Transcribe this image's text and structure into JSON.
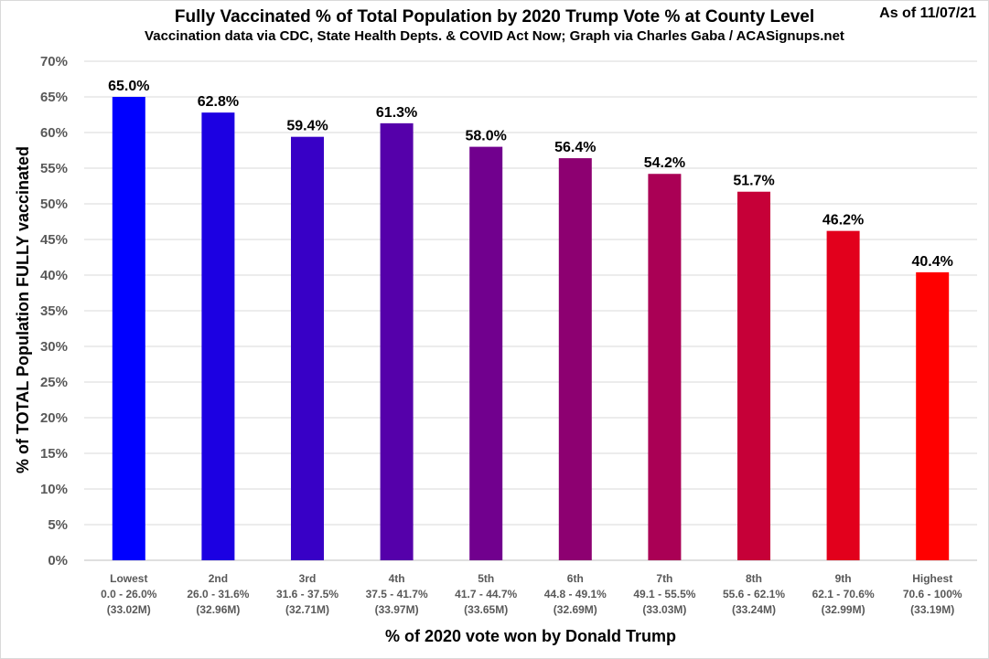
{
  "header": {
    "title": "Fully Vaccinated % of Total Population by 2020 Trump Vote % at County Level",
    "subtitle": "Vaccination data via CDC, State Health Depts. & COVID Act Now; Graph via Charles Gaba / ACASignups.net",
    "as_of": "As of 11/07/21"
  },
  "chart_data": {
    "type": "bar",
    "title": "Fully Vaccinated % of Total Population by 2020 Trump Vote % at County Level",
    "subtitle": "Vaccination data via CDC, State Health Depts. & COVID Act Now; Graph via Charles Gaba / ACASignups.net",
    "xlabel": "% of 2020 vote won by Donald Trump",
    "ylabel": "% of TOTAL Population FULLY vaccinated",
    "ylim": [
      0,
      70
    ],
    "ytick_step": 5,
    "ytick_suffix": "%",
    "grid": true,
    "legend": "none",
    "categories": [
      {
        "rank": "Lowest",
        "range": "0.0 - 26.0%",
        "population": "(33.02M)"
      },
      {
        "rank": "2nd",
        "range": "26.0 - 31.6%",
        "population": "(32.96M)"
      },
      {
        "rank": "3rd",
        "range": "31.6 - 37.5%",
        "population": "(32.71M)"
      },
      {
        "rank": "4th",
        "range": "37.5 - 41.7%",
        "population": "(33.97M)"
      },
      {
        "rank": "5th",
        "range": "41.7 - 44.7%",
        "population": "(33.65M)"
      },
      {
        "rank": "6th",
        "range": "44.8 - 49.1%",
        "population": "(32.69M)"
      },
      {
        "rank": "7th",
        "range": "49.1 - 55.5%",
        "population": "(33.03M)"
      },
      {
        "rank": "8th",
        "range": "55.6 - 62.1%",
        "population": "(33.24M)"
      },
      {
        "rank": "9th",
        "range": "62.1 - 70.6%",
        "population": "(32.99M)"
      },
      {
        "rank": "Highest",
        "range": "70.6 - 100%",
        "population": "(33.19M)"
      }
    ],
    "values": [
      65.0,
      62.8,
      59.4,
      61.3,
      58.0,
      56.4,
      54.2,
      51.7,
      46.2,
      40.4
    ],
    "data_labels": [
      "65.0%",
      "62.8%",
      "59.4%",
      "61.3%",
      "58.0%",
      "56.4%",
      "54.2%",
      "51.7%",
      "46.2%",
      "40.4%"
    ],
    "colors": [
      "#0000ff",
      "#1c00e2",
      "#3800c6",
      "#5500aa",
      "#71008e",
      "#8d0071",
      "#aa0055",
      "#c60038",
      "#e2001c",
      "#ff0000"
    ]
  }
}
